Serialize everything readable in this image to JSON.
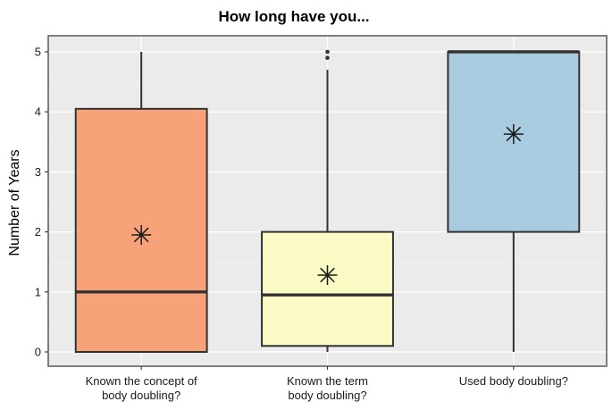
{
  "chart_data": {
    "type": "boxplot",
    "title": "How long have you...",
    "xlabel": "",
    "ylabel": "Number of Years",
    "ylim": [
      0,
      5
    ],
    "yticks": [
      0,
      1,
      2,
      3,
      4,
      5
    ],
    "grid": true,
    "legend": "none",
    "categories": [
      {
        "lines": [
          "Known the concept of",
          "body doubling?"
        ],
        "color": "#F8A27A",
        "whisker_low": 0,
        "q1": 0,
        "median": 1,
        "q3": 4.05,
        "whisker_high": 5,
        "mean": 1.95,
        "outliers": []
      },
      {
        "lines": [
          "Known the term",
          "body doubling?"
        ],
        "color": "#FAFAC5",
        "whisker_low": 0,
        "q1": 0.1,
        "median": 0.95,
        "q3": 2,
        "whisker_high": 4.7,
        "mean": 1.28,
        "outliers": [
          4.9,
          5.0
        ]
      },
      {
        "lines": [
          "Used body doubling?"
        ],
        "color": "#A8CBE0",
        "whisker_low": 0,
        "q1": 2,
        "median": 5,
        "q3": 5,
        "whisker_high": 5,
        "mean": 3.63,
        "outliers": []
      }
    ]
  }
}
